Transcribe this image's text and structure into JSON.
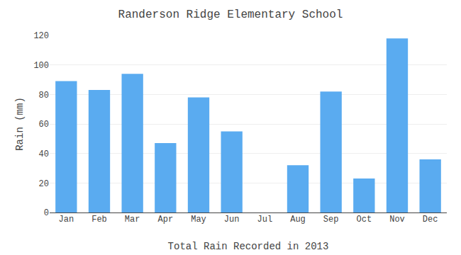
{
  "chart_data": {
    "type": "bar",
    "title": "Randerson Ridge Elementary School",
    "xlabel": "Total Rain Recorded in 2013",
    "ylabel": "Rain (mm)",
    "categories": [
      "Jan",
      "Feb",
      "Mar",
      "Apr",
      "May",
      "Jun",
      "Jul",
      "Aug",
      "Sep",
      "Oct",
      "Nov",
      "Dec"
    ],
    "values": [
      89,
      83,
      94,
      47,
      78,
      55,
      0,
      32,
      82,
      23,
      118,
      36
    ],
    "color": "#5aabf0",
    "ylim": [
      0,
      120
    ],
    "yticks": [
      0,
      20,
      40,
      60,
      80,
      100,
      120
    ],
    "grid": true
  }
}
